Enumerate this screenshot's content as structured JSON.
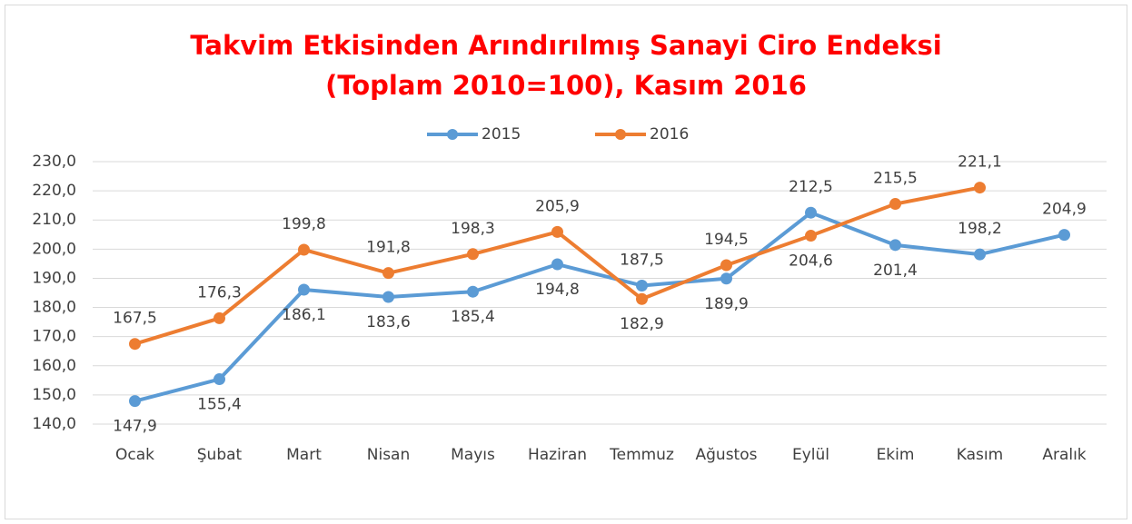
{
  "chart_data": {
    "type": "line",
    "title": "Takvim Etkisinden Arındırılmış Sanayi Ciro Endeksi (Toplam 2010=100), Kasım 2016",
    "categories": [
      "Ocak",
      "Şubat",
      "Mart",
      "Nisan",
      "Mayıs",
      "Haziran",
      "Temmuz",
      "Ağustos",
      "Eylül",
      "Ekim",
      "Kasım",
      "Aralık"
    ],
    "series": [
      {
        "name": "2015",
        "color": "#5b9bd5",
        "values": [
          147.9,
          155.4,
          186.1,
          183.6,
          185.4,
          194.8,
          187.5,
          189.9,
          212.5,
          201.4,
          198.2,
          204.9
        ],
        "value_labels": [
          "147,9",
          "155,4",
          "186,1",
          "183,6",
          "185,4",
          "194,8",
          "187,5",
          "189,9",
          "212,5",
          "201,4",
          "198,2",
          "204,9"
        ]
      },
      {
        "name": "2016",
        "color": "#ed7d31",
        "values": [
          167.5,
          176.3,
          199.8,
          191.8,
          198.3,
          205.9,
          182.9,
          194.5,
          204.6,
          215.5,
          221.1,
          null
        ],
        "value_labels": [
          "167,5",
          "176,3",
          "199,8",
          "191,8",
          "198,3",
          "205,9",
          "182,9",
          "194,5",
          "204,6",
          "215,5",
          "221,1",
          null
        ]
      }
    ],
    "ylim": [
      140,
      230
    ],
    "yticks": [
      {
        "value": 140,
        "label": "140,0"
      },
      {
        "value": 150,
        "label": "150,0"
      },
      {
        "value": 160,
        "label": "160,0"
      },
      {
        "value": 170,
        "label": "170,0"
      },
      {
        "value": 180,
        "label": "180,0"
      },
      {
        "value": 190,
        "label": "190,0"
      },
      {
        "value": 200,
        "label": "200,0"
      },
      {
        "value": 210,
        "label": "210,0"
      },
      {
        "value": 220,
        "label": "220,0"
      },
      {
        "value": 230,
        "label": "230,0"
      }
    ],
    "grid": true,
    "legend": "top"
  }
}
